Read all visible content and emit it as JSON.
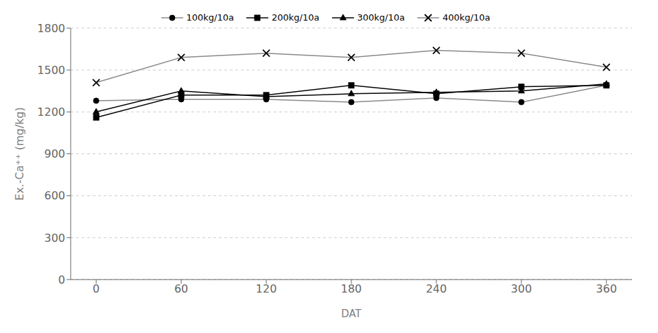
{
  "chart_data": {
    "type": "line",
    "x": [
      0,
      60,
      120,
      180,
      240,
      300,
      360
    ],
    "series": [
      {
        "name": "100kg/10a",
        "color": "#888888",
        "marker": "circle",
        "values": [
          1280,
          1290,
          1290,
          1270,
          1300,
          1270,
          1390
        ]
      },
      {
        "name": "200kg/10a",
        "color": "#000000",
        "marker": "square",
        "values": [
          1160,
          1320,
          1320,
          1390,
          1330,
          1380,
          1390
        ]
      },
      {
        "name": "300kg/10a",
        "color": "#000000",
        "marker": "triangle",
        "values": [
          1200,
          1350,
          1310,
          1330,
          1340,
          1350,
          1400
        ]
      },
      {
        "name": "400kg/10a",
        "color": "#888888",
        "marker": "x",
        "values": [
          1410,
          1590,
          1620,
          1590,
          1640,
          1620,
          1520
        ]
      }
    ],
    "xlabel": "DAT",
    "ylabel": "Ex.-Ca⁺⁺ (mg/kg)",
    "xlim": [
      -18,
      378
    ],
    "ylim": [
      0,
      1800
    ],
    "xticks": [
      0,
      60,
      120,
      180,
      240,
      300,
      360
    ],
    "yticks": [
      0,
      300,
      600,
      900,
      1200,
      1500,
      1800
    ],
    "grid": true,
    "legend": "top"
  }
}
